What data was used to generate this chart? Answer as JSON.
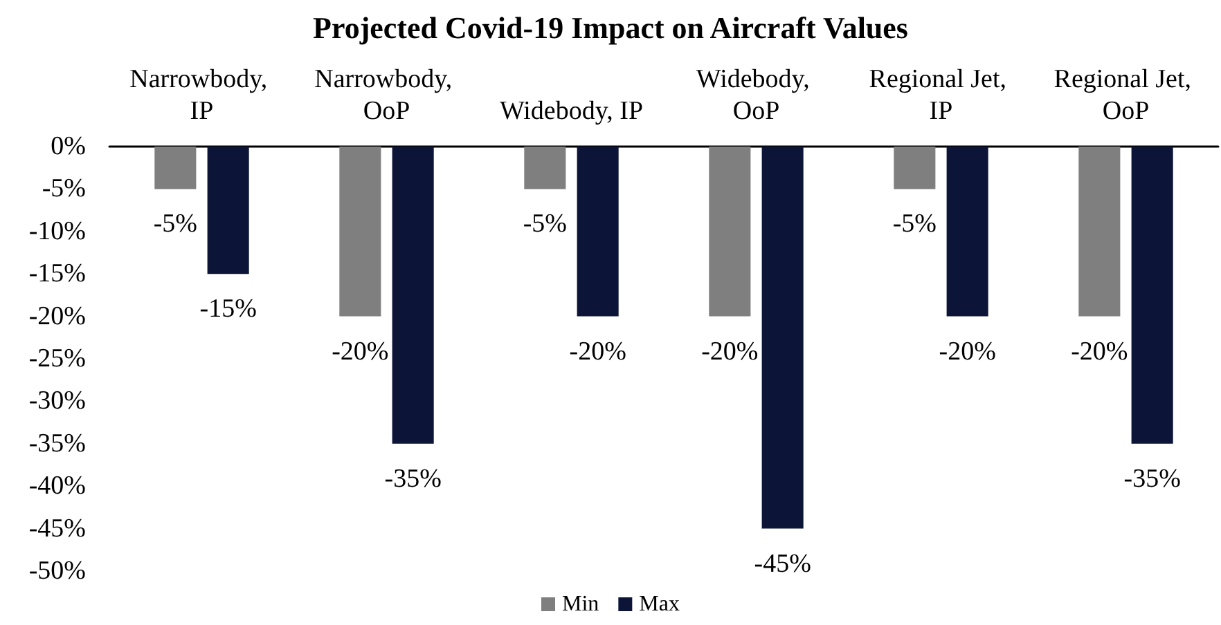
{
  "chart_data": {
    "type": "bar",
    "title": "Projected Covid-19 Impact on Aircraft Values",
    "categories": [
      "Narrowbody, IP",
      "Narrowbody, OoP",
      "Widebody, IP",
      "Widebody, OoP",
      "Regional Jet, IP",
      "Regional Jet, OoP"
    ],
    "series": [
      {
        "name": "Min",
        "color": "#7f7f7f",
        "values": [
          -5,
          -20,
          -5,
          -20,
          -5,
          -20
        ],
        "value_labels": [
          "-5%",
          "-20%",
          "-5%",
          "-20%",
          "-5%",
          "-20%"
        ]
      },
      {
        "name": "Max",
        "color": "#0c1438",
        "values": [
          -15,
          -35,
          -20,
          -45,
          -20,
          -35
        ],
        "value_labels": [
          "-15%",
          "-35%",
          "-20%",
          "-45%",
          "-20%",
          "-35%"
        ]
      }
    ],
    "ylim": [
      -50,
      0
    ],
    "yticks": [
      {
        "value": 0,
        "label": "0%"
      },
      {
        "value": -5,
        "label": "-5%"
      },
      {
        "value": -10,
        "label": "-10%"
      },
      {
        "value": -15,
        "label": "-15%"
      },
      {
        "value": -20,
        "label": "-20%"
      },
      {
        "value": -25,
        "label": "-25%"
      },
      {
        "value": -30,
        "label": "-30%"
      },
      {
        "value": -35,
        "label": "-35%"
      },
      {
        "value": -40,
        "label": "-40%"
      },
      {
        "value": -45,
        "label": "-45%"
      },
      {
        "value": -50,
        "label": "-50%"
      }
    ],
    "grid": false,
    "legend": "bottom"
  }
}
